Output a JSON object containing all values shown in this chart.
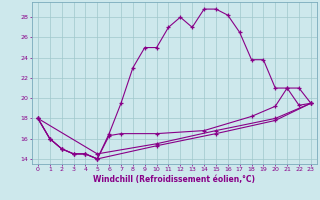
{
  "xlabel": "Windchill (Refroidissement éolien,°C)",
  "bg_color": "#cde8ec",
  "line_color": "#880088",
  "grid_color": "#a0c8cc",
  "xlim": [
    -0.5,
    23.5
  ],
  "ylim": [
    13.5,
    29.5
  ],
  "yticks": [
    14,
    16,
    18,
    20,
    22,
    24,
    26,
    28
  ],
  "xticks": [
    0,
    1,
    2,
    3,
    4,
    5,
    6,
    7,
    8,
    9,
    10,
    11,
    12,
    13,
    14,
    15,
    16,
    17,
    18,
    19,
    20,
    21,
    22,
    23
  ],
  "series1": [
    [
      0,
      18.0
    ],
    [
      1,
      16.0
    ],
    [
      2,
      15.0
    ],
    [
      3,
      14.5
    ],
    [
      4,
      14.5
    ],
    [
      5,
      14.0
    ],
    [
      6,
      16.5
    ],
    [
      7,
      19.5
    ],
    [
      8,
      23.0
    ],
    [
      9,
      25.0
    ],
    [
      10,
      25.0
    ],
    [
      11,
      27.0
    ],
    [
      12,
      28.0
    ],
    [
      13,
      27.0
    ],
    [
      14,
      28.8
    ],
    [
      15,
      28.8
    ],
    [
      16,
      28.2
    ],
    [
      17,
      26.5
    ],
    [
      18,
      23.8
    ],
    [
      19,
      23.8
    ],
    [
      20,
      21.0
    ],
    [
      21,
      21.0
    ],
    [
      22,
      19.3
    ],
    [
      23,
      19.5
    ]
  ],
  "series2": [
    [
      0,
      18.0
    ],
    [
      1,
      16.0
    ],
    [
      2,
      15.0
    ],
    [
      3,
      14.5
    ],
    [
      4,
      14.5
    ],
    [
      5,
      14.0
    ],
    [
      6,
      16.3
    ],
    [
      7,
      16.5
    ],
    [
      10,
      16.5
    ],
    [
      14,
      16.8
    ],
    [
      18,
      18.2
    ],
    [
      20,
      19.2
    ],
    [
      21,
      21.0
    ],
    [
      22,
      21.0
    ],
    [
      23,
      19.5
    ]
  ],
  "series3": [
    [
      0,
      18.0
    ],
    [
      1,
      16.0
    ],
    [
      2,
      15.0
    ],
    [
      3,
      14.5
    ],
    [
      4,
      14.5
    ],
    [
      5,
      14.0
    ],
    [
      10,
      15.3
    ],
    [
      15,
      16.5
    ],
    [
      20,
      17.8
    ],
    [
      23,
      19.5
    ]
  ],
  "series4": [
    [
      0,
      18.0
    ],
    [
      5,
      14.5
    ],
    [
      10,
      15.5
    ],
    [
      15,
      16.8
    ],
    [
      20,
      18.0
    ],
    [
      23,
      19.5
    ]
  ]
}
